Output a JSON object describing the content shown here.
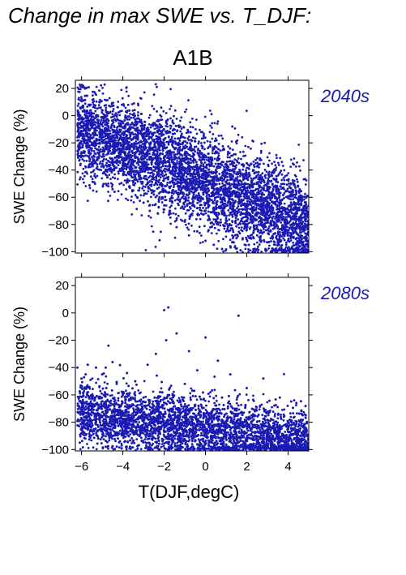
{
  "page_title": "Change in max SWE vs. T_DJF:",
  "scenario_title": "A1B",
  "chart_data": [
    {
      "type": "scatter",
      "period": "2040s",
      "ylabel": "SWE Change (%)",
      "xlabel": "",
      "xlim": [
        -6.3,
        5.0
      ],
      "ylim": [
        -101,
        26
      ],
      "xticks": [
        -6,
        -4,
        -2,
        0,
        2,
        4
      ],
      "yticks": [
        -100,
        -80,
        -60,
        -40,
        -20,
        0,
        20
      ],
      "grid": false,
      "color": "#1a1ab4",
      "points": [
        [
          -6.1,
          -22
        ],
        [
          -5.6,
          -18
        ],
        [
          -5.4,
          -30
        ],
        [
          -5.2,
          -25
        ],
        [
          -5.0,
          -14
        ],
        [
          -4.9,
          -20
        ],
        [
          -4.7,
          -28
        ],
        [
          -4.6,
          -22
        ],
        [
          -4.5,
          -54
        ],
        [
          -4.4,
          -56
        ],
        [
          -4.3,
          -35
        ],
        [
          -4.2,
          -18
        ],
        [
          -4.1,
          -26
        ],
        [
          -4.0,
          -40
        ],
        [
          -3.9,
          -28
        ],
        [
          -3.8,
          -48
        ],
        [
          -3.7,
          -22
        ],
        [
          -3.6,
          -35
        ],
        [
          -3.5,
          -55
        ],
        [
          -3.4,
          -30
        ],
        [
          -3.3,
          -60
        ],
        [
          -3.2,
          -42
        ],
        [
          -3.1,
          -25
        ],
        [
          -3.0,
          -64
        ],
        [
          -2.9,
          -38
        ],
        [
          -2.8,
          -50
        ],
        [
          -2.7,
          -70
        ],
        [
          -2.6,
          -33
        ],
        [
          -2.5,
          -58
        ],
        [
          -2.4,
          -45
        ],
        [
          -2.3,
          -72
        ],
        [
          -2.2,
          -28
        ],
        [
          -2.1,
          -52
        ],
        [
          -2.0,
          -66
        ],
        [
          -1.9,
          -5
        ],
        [
          -1.8,
          -40
        ],
        [
          -1.7,
          -75
        ],
        [
          -1.6,
          -55
        ],
        [
          -1.5,
          -35
        ],
        [
          -1.4,
          -82
        ],
        [
          -1.3,
          -62
        ],
        [
          -1.2,
          -45
        ],
        [
          -1.1,
          -20
        ],
        [
          -1.0,
          -78
        ],
        [
          -0.9,
          -55
        ],
        [
          -0.8,
          -88
        ],
        [
          -0.7,
          -38
        ],
        [
          -0.6,
          -66
        ],
        [
          -0.5,
          -50
        ],
        [
          -0.4,
          -85
        ],
        [
          -0.3,
          -30
        ],
        [
          -0.2,
          -72
        ],
        [
          -0.1,
          -58
        ],
        [
          0.0,
          -92
        ],
        [
          0.1,
          -44
        ],
        [
          0.2,
          -76
        ],
        [
          0.3,
          -62
        ],
        [
          0.4,
          -95
        ],
        [
          0.5,
          -40
        ],
        [
          0.6,
          -80
        ],
        [
          0.7,
          -68
        ],
        [
          0.8,
          -98
        ],
        [
          0.9,
          -25
        ],
        [
          1.0,
          -85
        ],
        [
          1.1,
          -55
        ],
        [
          1.2,
          -96
        ],
        [
          1.3,
          -8
        ],
        [
          1.4,
          -72
        ],
        [
          1.5,
          -90
        ],
        [
          1.6,
          -48
        ],
        [
          1.7,
          -99
        ],
        [
          1.8,
          -65
        ],
        [
          1.9,
          -82
        ],
        [
          2.0,
          -35
        ],
        [
          2.1,
          -95
        ],
        [
          2.2,
          -75
        ],
        [
          2.3,
          -58
        ],
        [
          2.4,
          -100
        ],
        [
          2.5,
          -88
        ],
        [
          2.6,
          -45
        ],
        [
          2.7,
          -92
        ],
        [
          2.8,
          -70
        ],
        [
          2.9,
          -98
        ],
        [
          3.0,
          -55
        ],
        [
          3.1,
          -85
        ],
        [
          3.2,
          -100
        ],
        [
          3.3,
          -78
        ],
        [
          3.4,
          -40
        ],
        [
          3.5,
          -95
        ],
        [
          3.6,
          -88
        ],
        [
          3.7,
          -62
        ],
        [
          3.8,
          -100
        ],
        [
          3.9,
          -80
        ],
        [
          4.0,
          -92
        ],
        [
          4.1,
          -70
        ],
        [
          4.2,
          -98
        ],
        [
          4.3,
          -48
        ],
        [
          4.4,
          -86
        ],
        [
          4.5,
          -100
        ],
        [
          4.6,
          -76
        ],
        [
          4.7,
          -94
        ],
        [
          4.8,
          -90
        ]
      ],
      "density": {
        "count": 5200,
        "center": [
          -0.5,
          -45
        ],
        "center_slope": -6.5,
        "spread": 17,
        "x_range": [
          -6.2,
          5.0
        ]
      }
    },
    {
      "type": "scatter",
      "period": "2080s",
      "ylabel": "SWE Change (%)",
      "xlabel": "T(DJF,degC)",
      "xlim": [
        -6.3,
        5.0
      ],
      "ylim": [
        -101,
        26
      ],
      "xticks": [
        -6,
        -4,
        -2,
        0,
        2,
        4
      ],
      "yticks": [
        -100,
        -80,
        -60,
        -40,
        -20,
        0,
        20
      ],
      "grid": false,
      "color": "#1a1ab4",
      "points": [
        [
          -6.2,
          -40
        ],
        [
          -6.0,
          -48
        ],
        [
          -5.8,
          -45
        ],
        [
          -5.7,
          -38
        ],
        [
          -5.5,
          -62
        ],
        [
          -5.3,
          -40
        ],
        [
          -5.2,
          -70
        ],
        [
          -5.0,
          -45
        ],
        [
          -4.9,
          -82
        ],
        [
          -4.8,
          -55
        ],
        [
          -4.7,
          -24
        ],
        [
          -4.6,
          -66
        ],
        [
          -4.5,
          -36
        ],
        [
          -4.4,
          -76
        ],
        [
          -4.3,
          -52
        ],
        [
          -4.2,
          -88
        ],
        [
          -4.0,
          -60
        ],
        [
          -3.8,
          -44
        ],
        [
          -3.6,
          -78
        ],
        [
          -3.4,
          -50
        ],
        [
          -3.2,
          -90
        ],
        [
          -3.0,
          -62
        ],
        [
          -2.8,
          -38
        ],
        [
          -2.6,
          -84
        ],
        [
          -2.4,
          -30
        ],
        [
          -2.3,
          -92
        ],
        [
          -2.2,
          -58
        ],
        [
          -2.0,
          2
        ],
        [
          -1.9,
          -20
        ],
        [
          -1.8,
          4
        ],
        [
          -1.6,
          -70
        ],
        [
          -1.4,
          -15
        ],
        [
          -1.2,
          -94
        ],
        [
          -1.0,
          -52
        ],
        [
          -0.8,
          -28
        ],
        [
          -0.6,
          -88
        ],
        [
          -0.4,
          -42
        ],
        [
          -0.2,
          -96
        ],
        [
          0.0,
          -18
        ],
        [
          0.2,
          -76
        ],
        [
          0.4,
          -98
        ],
        [
          0.6,
          -35
        ],
        [
          0.8,
          -62
        ],
        [
          1.0,
          -90
        ],
        [
          1.2,
          -45
        ],
        [
          1.4,
          -100
        ],
        [
          1.6,
          -2
        ],
        [
          1.8,
          -80
        ],
        [
          2.0,
          -55
        ],
        [
          2.2,
          -96
        ],
        [
          2.4,
          -72
        ],
        [
          2.6,
          -100
        ],
        [
          2.8,
          -48
        ],
        [
          3.0,
          -90
        ],
        [
          3.2,
          -78
        ],
        [
          3.4,
          -100
        ],
        [
          3.6,
          -62
        ],
        [
          3.8,
          -94
        ],
        [
          4.0,
          -85
        ],
        [
          4.2,
          -100
        ],
        [
          4.4,
          -66
        ],
        [
          4.6,
          -97
        ],
        [
          4.8,
          -90
        ]
      ],
      "density": {
        "count": 5200,
        "center": [
          0.5,
          -86
        ],
        "center_slope": -1.8,
        "spread": 11,
        "x_range": [
          -6.2,
          5.0
        ]
      }
    }
  ]
}
